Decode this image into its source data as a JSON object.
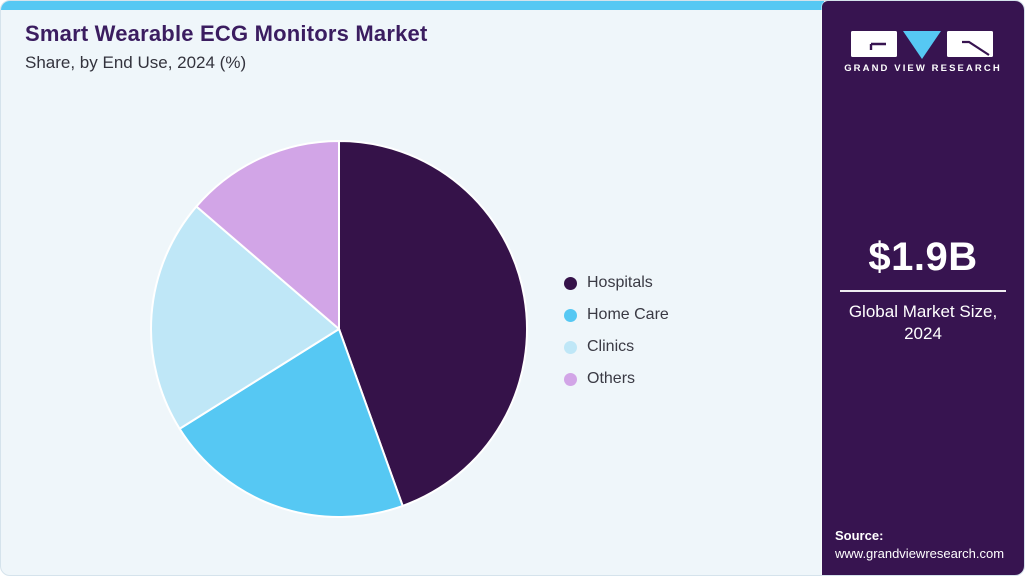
{
  "header": {
    "title": "Smart Wearable ECG Monitors Market",
    "subtitle": "Share, by End Use, 2024 (%)"
  },
  "sidebar": {
    "logo_text": "GRAND VIEW RESEARCH",
    "market_size": "$1.9B",
    "market_size_label": "Global Market Size, 2024",
    "source_label": "Source:",
    "source_url": "www.grandviewresearch.com"
  },
  "chart_data": {
    "type": "pie",
    "title": "Smart Wearable ECG Monitors Market Share, by End Use, 2024 (%)",
    "categories": [
      "Hospitals",
      "Home Care",
      "Clinics",
      "Others"
    ],
    "values": [
      44.5,
      21.6,
      20.2,
      13.7
    ],
    "unit": "%",
    "colors": [
      "#351249",
      "#56c8f3",
      "#bfe7f7",
      "#d2a5e7"
    ],
    "start_angle_deg": 0,
    "direction": "clockwise",
    "legend_position": "right",
    "slice_separator_color": "#ffffff"
  },
  "colors": {
    "accent_blue": "#56c8f3",
    "sidebar_bg": "#371450",
    "card_bg": "#eff6fa",
    "title_purple": "#3b1d60",
    "text_dark": "#33333d",
    "white": "#ffffff"
  }
}
